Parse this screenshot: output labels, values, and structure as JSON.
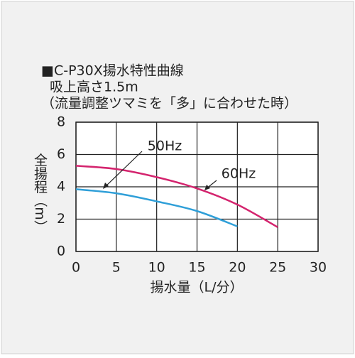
{
  "chart_data": {
    "type": "line",
    "title": "■C-P30X揚水特性曲線",
    "subtitle": [
      "吸上高さ1.5m",
      "（流量調整ツマミを「多」に合わせた時）"
    ],
    "x_label": "揚水量（L/分）",
    "y_label": "全揚程（m）",
    "x": [
      0,
      5,
      10,
      15,
      20,
      25
    ],
    "series": [
      {
        "name": "50Hz",
        "color": "#2f9fd8",
        "values": [
          3.85,
          3.6,
          3.1,
          2.5,
          1.55,
          null
        ]
      },
      {
        "name": "60Hz",
        "color": "#d4246e",
        "values": [
          5.3,
          5.1,
          4.6,
          3.9,
          2.9,
          1.5
        ]
      }
    ],
    "xlim": [
      0,
      30
    ],
    "xticks": [
      0,
      5,
      10,
      15,
      20,
      25,
      30
    ],
    "ylim": [
      0,
      8
    ],
    "yticks": [
      0,
      2,
      4,
      6,
      8
    ],
    "grid": true
  }
}
